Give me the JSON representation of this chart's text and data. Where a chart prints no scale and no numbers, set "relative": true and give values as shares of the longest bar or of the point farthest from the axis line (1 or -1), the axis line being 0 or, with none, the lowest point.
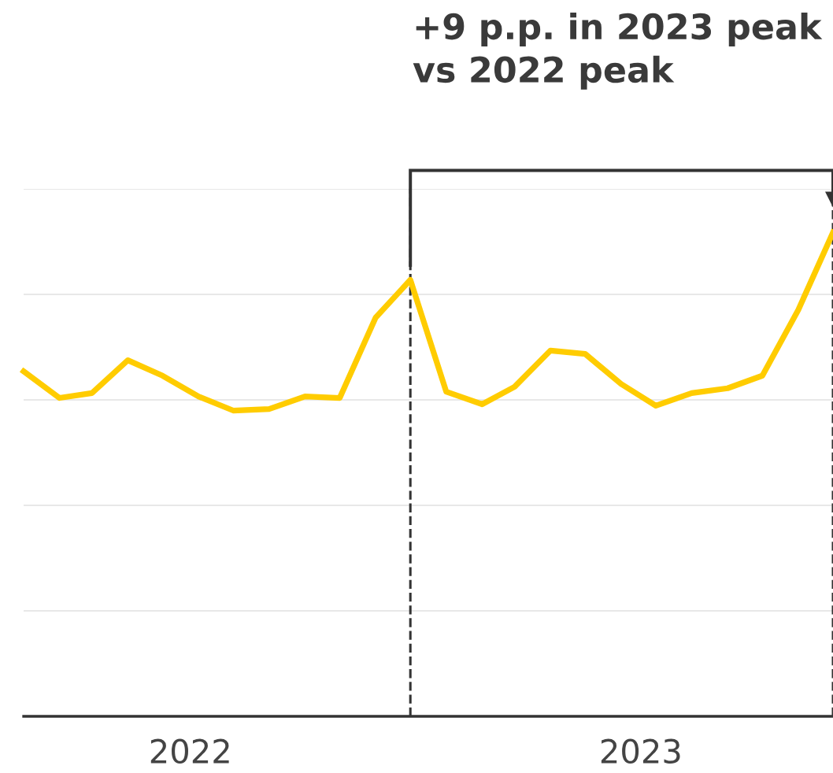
{
  "chart_data": {
    "type": "line",
    "relative": true,
    "annotations": [
      "+9 p.p. in 2023 peak vs 2022 peak"
    ],
    "x": [
      "2022-01",
      "2022-02",
      "2022-03",
      "2022-04",
      "2022-05",
      "2022-06",
      "2022-07",
      "2022-08",
      "2022-09",
      "2022-10",
      "2022-11",
      "2022-12",
      "2023-01",
      "2023-02",
      "2023-03",
      "2023-04",
      "2023-05",
      "2023-06",
      "2023-07",
      "2023-08",
      "2023-09",
      "2023-10",
      "2023-11",
      "2023-12"
    ],
    "xlim": [
      "2022-01",
      "2023-12"
    ],
    "xticks": [
      {
        "value": "2022-05-25",
        "label": "2022"
      },
      {
        "value": "2023-06-18",
        "label": "2023"
      }
    ],
    "series": [
      {
        "color": "#ffcc00",
        "values": [
          0.713,
          0.658,
          0.668,
          0.736,
          0.704,
          0.661,
          0.632,
          0.635,
          0.661,
          0.658,
          0.824,
          0.902,
          0.671,
          0.645,
          0.681,
          0.756,
          0.749,
          0.687,
          0.642,
          0.668,
          0.678,
          0.704,
          0.84,
          1.0
        ]
      }
    ],
    "ref_lines": [
      {
        "axis": "x",
        "value": "2022-12",
        "color": "#333333",
        "line_style": "dashed"
      },
      {
        "axis": "x",
        "value": "2023-12",
        "color": "#333333",
        "line_style": "dashed"
      }
    ],
    "grid": "y",
    "marker": "none",
    "line_style": "solid",
    "legend": false
  }
}
